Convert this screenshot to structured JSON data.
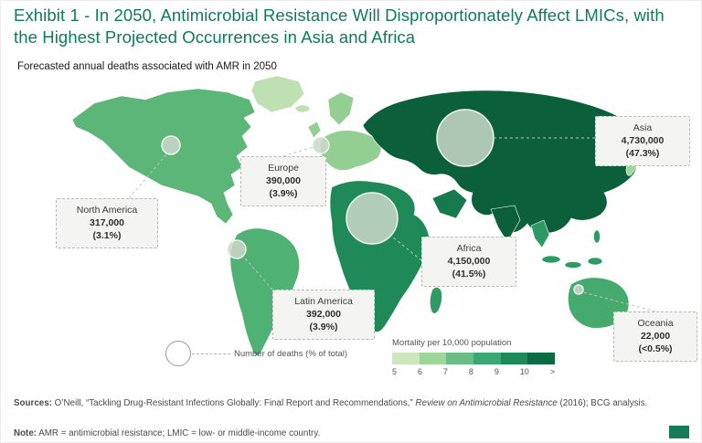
{
  "title": "Exhibit 1 - In 2050, Antimicrobial Resistance Will Disproportionately Affect LMICs, with the Highest Projected Occurrences in Asia and Africa",
  "subtitle": "Forecasted annual deaths associated with AMR in 2050",
  "chart_data": {
    "type": "choropleth-map",
    "title": "Forecasted annual deaths associated with AMR in 2050",
    "regions": [
      {
        "name": "North America",
        "deaths": "317,000",
        "share": "(3.1%)",
        "deaths_value": 317000,
        "share_pct": 3.1
      },
      {
        "name": "Europe",
        "deaths": "390,000",
        "share": "(3.9%)",
        "deaths_value": 390000,
        "share_pct": 3.9
      },
      {
        "name": "Latin America",
        "deaths": "392,000",
        "share": "(3.9%)",
        "deaths_value": 392000,
        "share_pct": 3.9
      },
      {
        "name": "Africa",
        "deaths": "4,150,000",
        "share": "(41.5%)",
        "deaths_value": 4150000,
        "share_pct": 41.5
      },
      {
        "name": "Asia",
        "deaths": "4,730,000",
        "share": "(47.3%)",
        "deaths_value": 4730000,
        "share_pct": 47.3
      },
      {
        "name": "Oceania",
        "deaths": "22,000",
        "share": "(<0.5%)",
        "deaths_value": 22000,
        "share_pct": 0.5
      }
    ],
    "bubble_legend_label": "Number of deaths (% of total)",
    "bubble_color": "#cbd8ca",
    "color_legend": {
      "title": "Mortality per 10,000 population",
      "ticks": [
        "5",
        "6",
        "7",
        "8",
        "9",
        "10",
        ">"
      ],
      "colors": [
        "#cde6bc",
        "#9ed69a",
        "#69bd85",
        "#3aa873",
        "#1d8a57",
        "#0c6b41"
      ]
    },
    "map_colors": {
      "greenland": "#bfe0b2",
      "iceland": "#bfe0b2",
      "north_america": "#5bb677",
      "latin_america": "#4fb173",
      "europe": "#93ce93",
      "africa": "#1f8a58",
      "madagascar": "#2f9a62",
      "asia": "#0b5f3b",
      "middle_east": "#177a4e",
      "southeast_asia": "#2d9a64",
      "japan": "#9ed69a",
      "oceania": "#46aa6f",
      "new_zealand": "#7cc48b"
    }
  },
  "footer": {
    "sources_label": "Sources:",
    "sources_text": " O’Neill, “Tackling Drug-Resistant Infections Globally: Final Report and Recommendations,” ",
    "sources_journal": "Review on Antimicrobial Resistance",
    "sources_tail": " (2016); BCG analysis.",
    "note_label": "Note:",
    "note_text": " AMR = antimicrobial resistance; LMIC = low- or middle-income country."
  },
  "colors": {
    "title_teal": "#0e7a5f",
    "callout_bg": "#f4f4f2",
    "logo_green": "#177b57"
  }
}
